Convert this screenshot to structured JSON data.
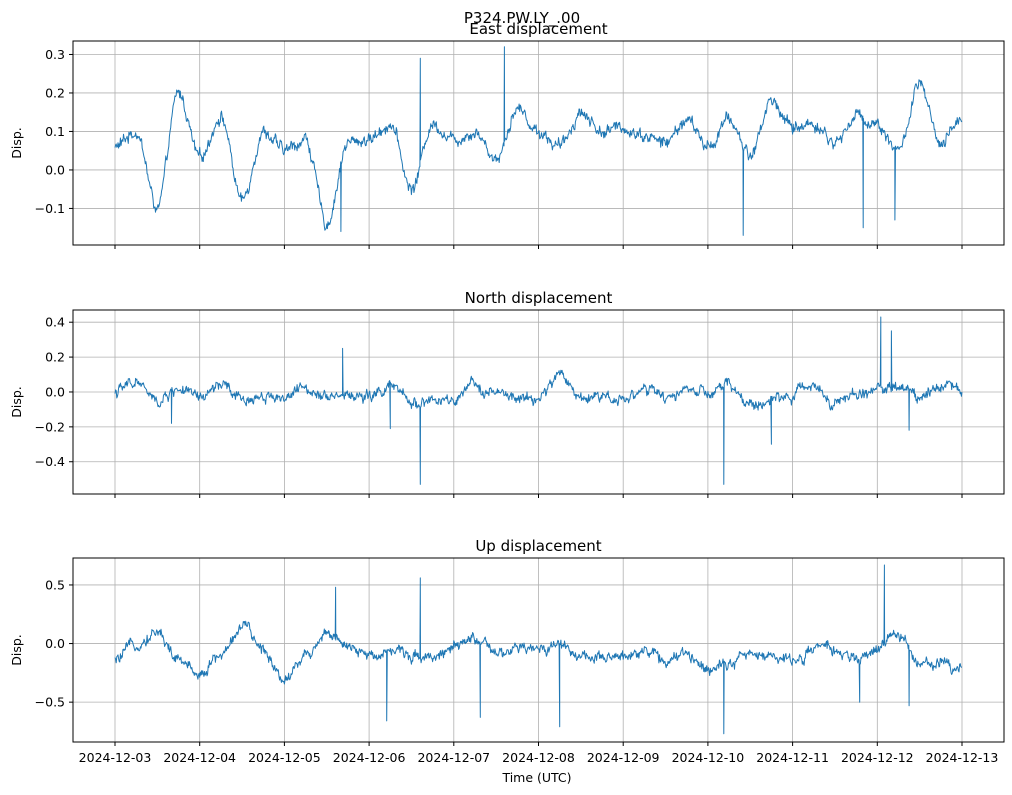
{
  "figure": {
    "suptitle": "P324.PW.LY_.00",
    "xlabel": "Time (UTC)"
  },
  "colors": {
    "series": "#1f77b4",
    "grid": "#b0b0b0"
  },
  "chart_data": [
    {
      "type": "line",
      "title": "East displacement",
      "ylabel": "Disp.",
      "xlabel": "",
      "x_axis": "date",
      "xlim": [
        "2024-12-03",
        "2024-12-13"
      ],
      "ylim": [
        -0.195,
        0.335
      ],
      "yticks": [
        -0.1,
        0.0,
        0.1,
        0.2,
        0.3
      ],
      "ytick_labels": [
        "−0.1",
        "0.0",
        "0.1",
        "0.2",
        "0.3"
      ],
      "grid": true,
      "series": [
        {
          "x": [
            "2024-12-03 00:00",
            "2024-12-03 06:00",
            "2024-12-03 12:00",
            "2024-12-03 18:00",
            "2024-12-04 00:00",
            "2024-12-04 06:00",
            "2024-12-04 12:00",
            "2024-12-04 18:00",
            "2024-12-05 00:00",
            "2024-12-05 06:00",
            "2024-12-05 12:00",
            "2024-12-05 18:00",
            "2024-12-06 00:00",
            "2024-12-06 06:00",
            "2024-12-06 12:00",
            "2024-12-06 18:00",
            "2024-12-07 00:00",
            "2024-12-07 06:00",
            "2024-12-07 12:00",
            "2024-12-07 18:00",
            "2024-12-08 00:00",
            "2024-12-08 06:00",
            "2024-12-08 12:00",
            "2024-12-08 18:00",
            "2024-12-09 00:00",
            "2024-12-09 06:00",
            "2024-12-09 12:00",
            "2024-12-09 18:00",
            "2024-12-10 00:00",
            "2024-12-10 06:00",
            "2024-12-10 12:00",
            "2024-12-10 18:00",
            "2024-12-11 00:00",
            "2024-12-11 06:00",
            "2024-12-11 12:00",
            "2024-12-11 18:00",
            "2024-12-12 00:00",
            "2024-12-12 06:00",
            "2024-12-12 12:00",
            "2024-12-12 18:00",
            "2024-12-13 00:00"
          ],
          "y": [
            0.06,
            0.1,
            -0.1,
            0.2,
            0.03,
            0.14,
            -0.08,
            0.1,
            0.05,
            0.08,
            -0.14,
            0.07,
            0.08,
            0.12,
            -0.05,
            0.12,
            0.08,
            0.1,
            0.03,
            0.16,
            0.1,
            0.06,
            0.15,
            0.1,
            0.11,
            0.09,
            0.07,
            0.13,
            0.06,
            0.13,
            0.04,
            0.18,
            0.11,
            0.12,
            0.07,
            0.14,
            0.12,
            0.05,
            0.22,
            0.06,
            0.14
          ]
        }
      ],
      "spikes": [
        {
          "x": "2024-12-06 14:30",
          "y": 0.29
        },
        {
          "x": "2024-12-07 14:20",
          "y": 0.32
        },
        {
          "x": "2024-12-10 10:00",
          "y": -0.17
        },
        {
          "x": "2024-12-11 20:00",
          "y": -0.15
        },
        {
          "x": "2024-12-12 05:00",
          "y": -0.13
        },
        {
          "x": "2024-12-05 16:00",
          "y": -0.16
        }
      ]
    },
    {
      "type": "line",
      "title": "North displacement",
      "ylabel": "Disp.",
      "xlabel": "",
      "x_axis": "date",
      "xlim": [
        "2024-12-03",
        "2024-12-13"
      ],
      "ylim": [
        -0.585,
        0.47
      ],
      "yticks": [
        -0.4,
        -0.2,
        0.0,
        0.2,
        0.4
      ],
      "ytick_labels": [
        "−0.4",
        "−0.2",
        "0.0",
        "0.2",
        "0.4"
      ],
      "grid": true,
      "series": [
        {
          "x": [
            "2024-12-03 00:00",
            "2024-12-03 06:00",
            "2024-12-03 12:00",
            "2024-12-03 18:00",
            "2024-12-04 00:00",
            "2024-12-04 06:00",
            "2024-12-04 12:00",
            "2024-12-04 18:00",
            "2024-12-05 00:00",
            "2024-12-05 06:00",
            "2024-12-05 12:00",
            "2024-12-05 18:00",
            "2024-12-06 00:00",
            "2024-12-06 06:00",
            "2024-12-06 12:00",
            "2024-12-06 18:00",
            "2024-12-07 00:00",
            "2024-12-07 06:00",
            "2024-12-07 12:00",
            "2024-12-07 18:00",
            "2024-12-08 00:00",
            "2024-12-08 06:00",
            "2024-12-08 12:00",
            "2024-12-08 18:00",
            "2024-12-09 00:00",
            "2024-12-09 06:00",
            "2024-12-09 12:00",
            "2024-12-09 18:00",
            "2024-12-10 00:00",
            "2024-12-10 06:00",
            "2024-12-10 12:00",
            "2024-12-10 18:00",
            "2024-12-11 00:00",
            "2024-12-11 06:00",
            "2024-12-11 12:00",
            "2024-12-11 18:00",
            "2024-12-12 00:00",
            "2024-12-12 06:00",
            "2024-12-12 12:00",
            "2024-12-12 18:00",
            "2024-12-13 00:00"
          ],
          "y": [
            0.0,
            0.06,
            -0.06,
            0.02,
            -0.04,
            0.04,
            -0.05,
            -0.02,
            -0.03,
            0.02,
            -0.01,
            -0.02,
            -0.03,
            0.03,
            -0.06,
            -0.05,
            -0.06,
            0.04,
            -0.01,
            -0.04,
            -0.04,
            0.1,
            -0.03,
            -0.02,
            -0.04,
            0.02,
            -0.04,
            0.02,
            -0.02,
            0.04,
            -0.08,
            -0.05,
            -0.02,
            0.05,
            -0.06,
            -0.02,
            0.02,
            0.03,
            -0.02,
            0.05,
            0.01
          ]
        }
      ],
      "spikes": [
        {
          "x": "2024-12-06 14:30",
          "y": -0.53
        },
        {
          "x": "2024-12-10 04:30",
          "y": -0.53
        },
        {
          "x": "2024-12-12 01:00",
          "y": 0.43
        },
        {
          "x": "2024-12-12 04:00",
          "y": 0.35
        },
        {
          "x": "2024-12-05 16:30",
          "y": 0.25
        },
        {
          "x": "2024-12-06 06:00",
          "y": -0.21
        },
        {
          "x": "2024-12-03 16:00",
          "y": -0.18
        },
        {
          "x": "2024-12-10 18:00",
          "y": -0.3
        },
        {
          "x": "2024-12-12 09:00",
          "y": -0.22
        }
      ]
    },
    {
      "type": "line",
      "title": "Up displacement",
      "ylabel": "Disp.",
      "xlabel": "Time (UTC)",
      "x_axis": "date",
      "xlim": [
        "2024-12-03",
        "2024-12-13"
      ],
      "ylim": [
        -0.84,
        0.73
      ],
      "yticks": [
        -0.5,
        0.0,
        0.5
      ],
      "ytick_labels": [
        "−0.5",
        "0.0",
        "0.5"
      ],
      "xtick_labels": [
        "2024-12-03",
        "2024-12-04",
        "2024-12-05",
        "2024-12-06",
        "2024-12-07",
        "2024-12-08",
        "2024-12-09",
        "2024-12-10",
        "2024-12-11",
        "2024-12-12",
        "2024-12-13"
      ],
      "grid": true,
      "series": [
        {
          "x": [
            "2024-12-03 00:00",
            "2024-12-03 06:00",
            "2024-12-03 12:00",
            "2024-12-03 18:00",
            "2024-12-04 00:00",
            "2024-12-04 06:00",
            "2024-12-04 12:00",
            "2024-12-04 18:00",
            "2024-12-05 00:00",
            "2024-12-05 06:00",
            "2024-12-05 12:00",
            "2024-12-05 18:00",
            "2024-12-06 00:00",
            "2024-12-06 06:00",
            "2024-12-06 12:00",
            "2024-12-06 18:00",
            "2024-12-07 00:00",
            "2024-12-07 06:00",
            "2024-12-07 12:00",
            "2024-12-07 18:00",
            "2024-12-08 00:00",
            "2024-12-08 06:00",
            "2024-12-08 12:00",
            "2024-12-08 18:00",
            "2024-12-09 00:00",
            "2024-12-09 06:00",
            "2024-12-09 12:00",
            "2024-12-09 18:00",
            "2024-12-10 00:00",
            "2024-12-10 06:00",
            "2024-12-10 12:00",
            "2024-12-10 18:00",
            "2024-12-11 00:00",
            "2024-12-11 06:00",
            "2024-12-11 12:00",
            "2024-12-11 18:00",
            "2024-12-12 00:00",
            "2024-12-12 06:00",
            "2024-12-12 12:00",
            "2024-12-12 18:00",
            "2024-12-13 00:00"
          ],
          "y": [
            -0.15,
            0.0,
            0.1,
            -0.15,
            -0.25,
            -0.1,
            0.15,
            -0.05,
            -0.3,
            -0.1,
            0.1,
            -0.05,
            -0.1,
            -0.05,
            -0.1,
            -0.1,
            -0.05,
            0.05,
            -0.1,
            -0.05,
            -0.05,
            0.0,
            -0.1,
            -0.15,
            -0.1,
            -0.05,
            -0.15,
            -0.1,
            -0.2,
            -0.15,
            -0.1,
            -0.1,
            -0.15,
            -0.05,
            -0.05,
            -0.15,
            -0.05,
            0.1,
            -0.2,
            -0.15,
            -0.2
          ]
        }
      ],
      "spikes": [
        {
          "x": "2024-12-06 14:30",
          "y": 0.56
        },
        {
          "x": "2024-12-12 02:00",
          "y": 0.67
        },
        {
          "x": "2024-12-10 04:30",
          "y": -0.77
        },
        {
          "x": "2024-12-08 06:00",
          "y": -0.71
        },
        {
          "x": "2024-12-07 07:30",
          "y": -0.63
        },
        {
          "x": "2024-12-06 05:00",
          "y": -0.66
        },
        {
          "x": "2024-12-05 14:30",
          "y": 0.48
        },
        {
          "x": "2024-12-11 19:00",
          "y": -0.5
        },
        {
          "x": "2024-12-12 09:00",
          "y": -0.53
        }
      ]
    }
  ]
}
